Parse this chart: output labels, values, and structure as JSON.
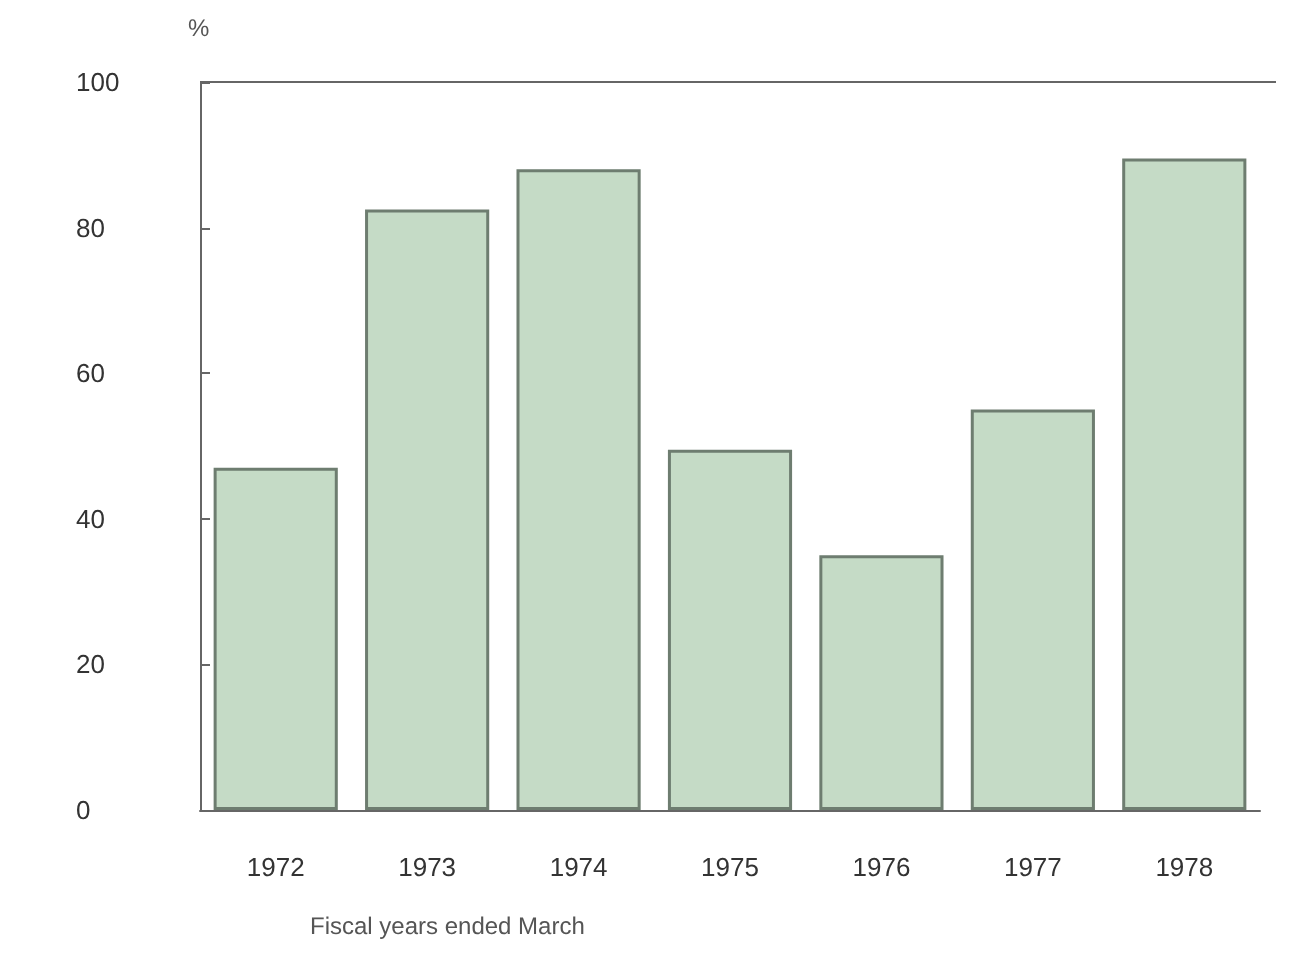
{
  "chart_data": {
    "type": "bar",
    "ylabel": "%",
    "xlabel": "Fiscal years ended March",
    "categories": [
      "1972",
      "1973",
      "1974",
      "1975",
      "1976",
      "1977",
      "1978"
    ],
    "values": [
      47,
      82.5,
      88,
      49.5,
      35,
      55,
      89.5
    ],
    "color": "#c5dbc6",
    "ylim": [
      0,
      100
    ],
    "yticks": [
      0,
      20,
      40,
      60,
      80,
      100
    ],
    "grid": false
  }
}
